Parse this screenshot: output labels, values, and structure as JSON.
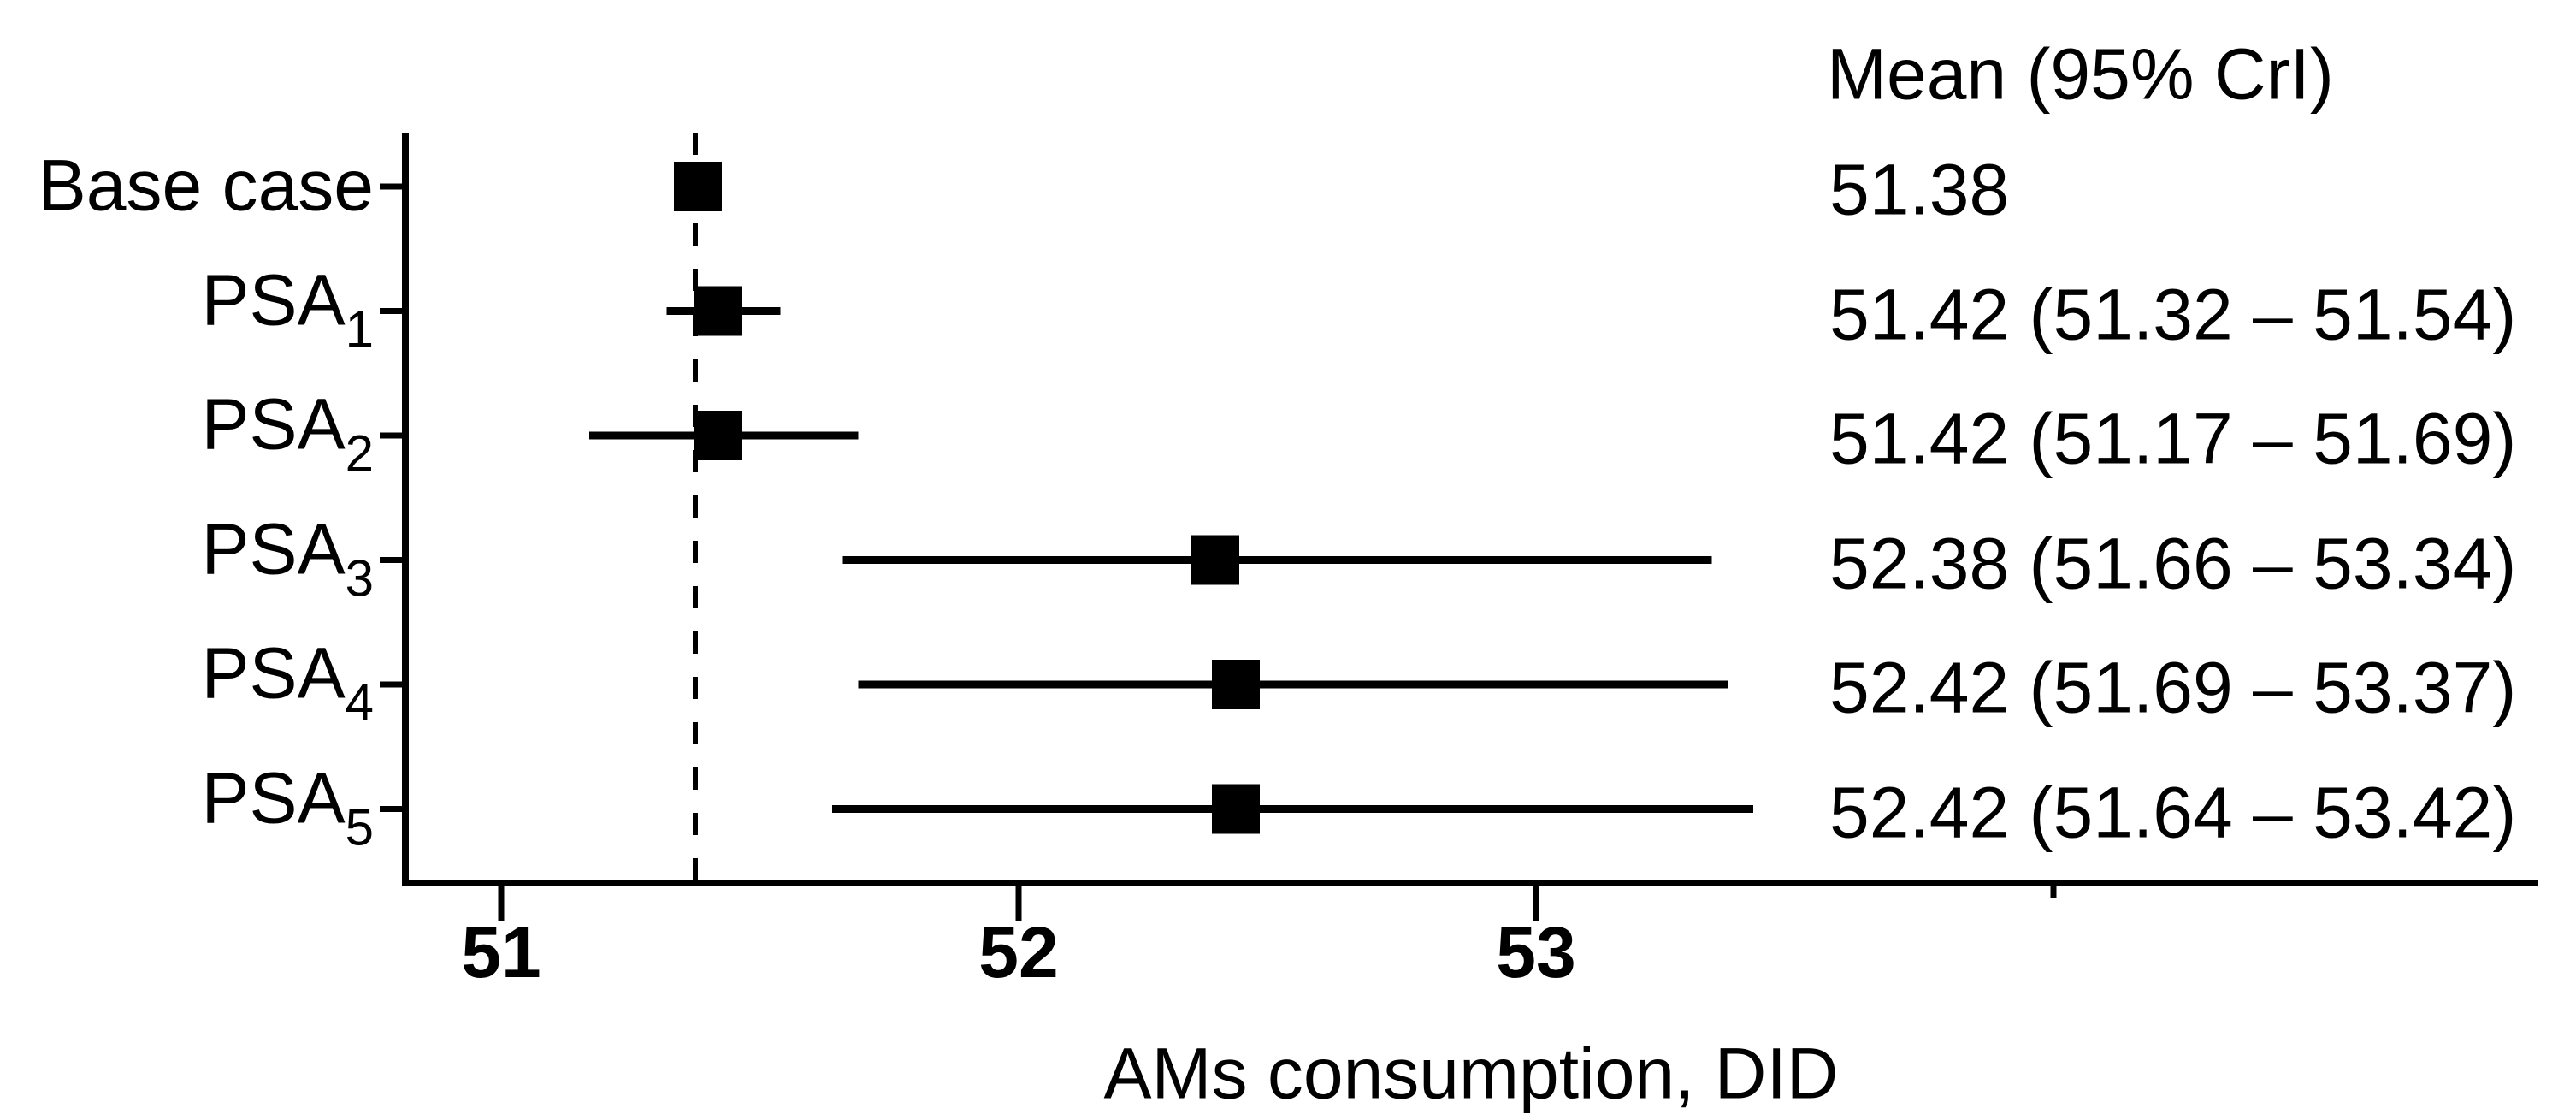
{
  "figure": {
    "value_column_header": "Mean (95% CrI)",
    "x_axis_title": "AMs consumption, DID"
  },
  "chart_data": {
    "type": "scatter",
    "subtype": "forest-plot",
    "title": "",
    "xlabel": "AMs consumption, DID",
    "ylabel": "",
    "value_column_header": "Mean (95% CrI)",
    "x_ticks": [
      "51",
      "52",
      "53"
    ],
    "x_partial_tick": 54,
    "xlim": [
      50.81,
      54.93
    ],
    "grid": false,
    "reference_line": {
      "value": 51.38,
      "style": "dashed"
    },
    "rows": [
      {
        "label": "Base case",
        "label_sub": "",
        "mean": 51.38,
        "ci_low": null,
        "ci_high": null,
        "value_text": "51.38"
      },
      {
        "label": "PSA",
        "label_sub": "1",
        "mean": 51.42,
        "ci_low": 51.32,
        "ci_high": 51.54,
        "value_text": "51.42 (51.32 – 51.54)"
      },
      {
        "label": "PSA",
        "label_sub": "2",
        "mean": 51.42,
        "ci_low": 51.17,
        "ci_high": 51.69,
        "value_text": "51.42 (51.17 – 51.69)"
      },
      {
        "label": "PSA",
        "label_sub": "3",
        "mean": 52.38,
        "ci_low": 51.66,
        "ci_high": 53.34,
        "value_text": "52.38 (51.66 – 53.34)"
      },
      {
        "label": "PSA",
        "label_sub": "4",
        "mean": 52.42,
        "ci_low": 51.69,
        "ci_high": 53.37,
        "value_text": "52.42 (51.69 – 53.37)"
      },
      {
        "label": "PSA",
        "label_sub": "5",
        "mean": 52.42,
        "ci_low": 51.64,
        "ci_high": 53.42,
        "value_text": "52.42 (51.64 – 53.42)"
      }
    ],
    "colors": {
      "foreground": "#000000",
      "background": "#ffffff"
    }
  }
}
